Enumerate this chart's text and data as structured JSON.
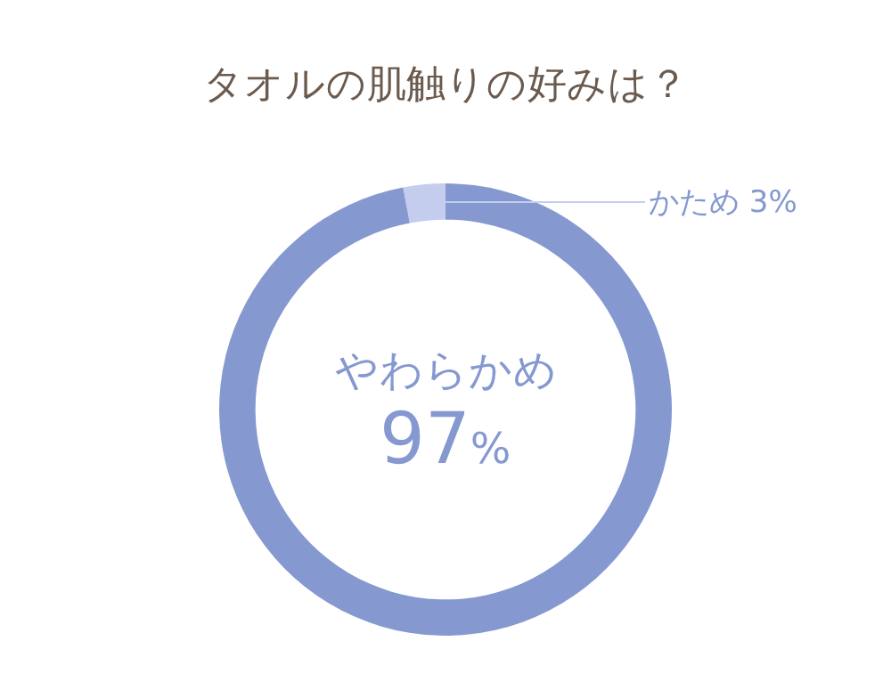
{
  "chart_data": {
    "type": "donut",
    "title": "タオルの肌触りの好みは？",
    "categories": [
      "やわらかめ",
      "かため"
    ],
    "values": [
      97,
      3
    ],
    "value_labels": [
      "97%",
      "3%"
    ],
    "colors": [
      "#8599d0",
      "#c4cdee"
    ],
    "legend": false
  }
}
